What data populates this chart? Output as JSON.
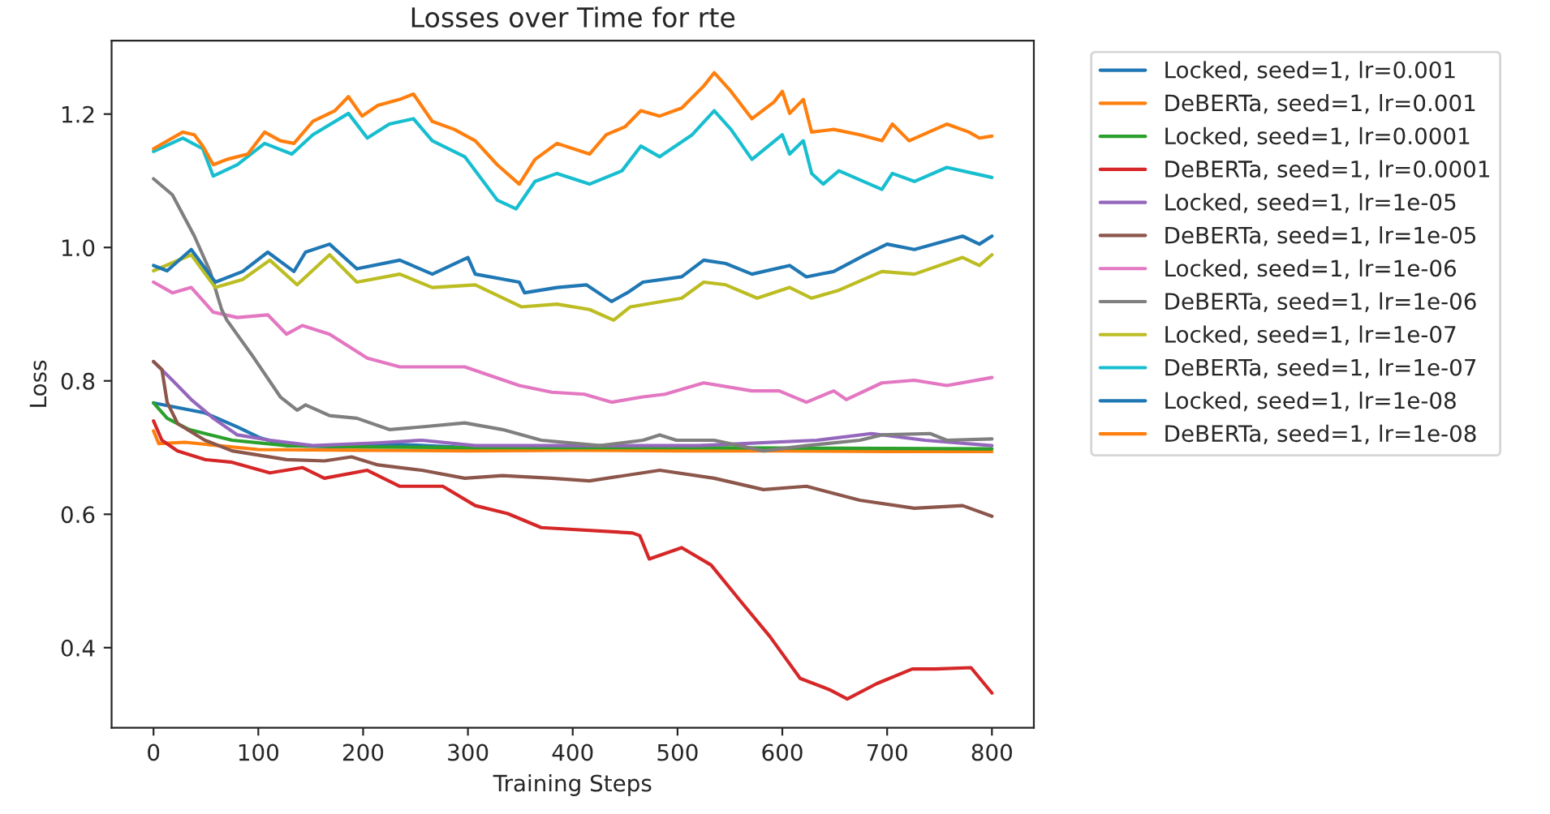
{
  "chart_data": {
    "type": "line",
    "title": "Losses over Time for rte",
    "xlabel": "Training Steps",
    "ylabel": "Loss",
    "xlim": [
      -40,
      840
    ],
    "ylim": [
      0.28,
      1.31
    ],
    "xticks": [
      0,
      100,
      200,
      300,
      400,
      500,
      600,
      700,
      800
    ],
    "yticks": [
      0.4,
      0.6,
      0.8,
      {
        "value": 1.0,
        "label": "1.0"
      },
      1.2
    ],
    "grid": false,
    "legend": "right",
    "line_style": "solid",
    "series": [
      {
        "name": "Locked, seed=1, lr=0.001",
        "color": "#1f77b4",
        "x": [
          0,
          23,
          49,
          80,
          101,
          127,
          180,
          230,
          300,
          400
        ],
        "values": [
          0.767,
          0.76,
          0.752,
          0.731,
          0.715,
          0.703,
          0.701,
          0.705,
          0.7,
          0.699
        ]
      },
      {
        "name": "DeBERTa, seed=1, lr=0.001",
        "color": "#ff7f0e",
        "x": [
          0,
          5,
          30,
          100,
          200,
          300,
          400,
          500,
          600,
          700,
          800
        ],
        "values": [
          0.725,
          0.706,
          0.708,
          0.697,
          0.696,
          0.695,
          0.696,
          0.695,
          0.695,
          0.694,
          0.694
        ]
      },
      {
        "name": "Locked, seed=1, lr=0.0001",
        "color": "#2ca02c",
        "x": [
          0,
          13,
          34,
          75,
          127,
          204,
          300,
          500,
          650,
          800
        ],
        "values": [
          0.767,
          0.744,
          0.727,
          0.711,
          0.703,
          0.701,
          0.7,
          0.7,
          0.699,
          0.698
        ]
      },
      {
        "name": "DeBERTa, seed=1, lr=0.0001",
        "color": "#d62728",
        "x": [
          0,
          8,
          23,
          49,
          75,
          111,
          142,
          163,
          204,
          235,
          276,
          307,
          338,
          370,
          457,
          464,
          473,
          504,
          532,
          560,
          588,
          617,
          645,
          662,
          690,
          724,
          746,
          780,
          800
        ],
        "values": [
          0.74,
          0.711,
          0.695,
          0.682,
          0.678,
          0.662,
          0.67,
          0.654,
          0.666,
          0.642,
          0.642,
          0.613,
          0.601,
          0.58,
          0.572,
          0.568,
          0.533,
          0.55,
          0.524,
          0.47,
          0.417,
          0.354,
          0.337,
          0.323,
          0.346,
          0.368,
          0.368,
          0.37,
          0.332
        ]
      },
      {
        "name": "Locked, seed=1, lr=1e-05",
        "color": "#9467bd",
        "x": [
          0,
          18,
          36,
          57,
          80,
          111,
          152,
          214,
          256,
          307,
          416,
          520,
          633,
          685,
          736,
          800
        ],
        "values": [
          0.829,
          0.801,
          0.772,
          0.744,
          0.719,
          0.711,
          0.703,
          0.707,
          0.711,
          0.703,
          0.703,
          0.703,
          0.711,
          0.721,
          0.711,
          0.703
        ]
      },
      {
        "name": "DeBERTa, seed=1, lr=1e-05",
        "color": "#8c564b",
        "x": [
          0,
          8,
          13,
          23,
          49,
          75,
          127,
          163,
          189,
          214,
          256,
          297,
          333,
          380,
          416,
          483,
          535,
          582,
          623,
          674,
          726,
          772,
          800
        ],
        "values": [
          0.829,
          0.817,
          0.768,
          0.736,
          0.711,
          0.695,
          0.682,
          0.68,
          0.686,
          0.674,
          0.666,
          0.654,
          0.658,
          0.654,
          0.65,
          0.666,
          0.654,
          0.637,
          0.642,
          0.621,
          0.609,
          0.613,
          0.597
        ]
      },
      {
        "name": "Locked, seed=1, lr=1e-06",
        "color": "#e377c2",
        "x": [
          0,
          18,
          36,
          57,
          80,
          109,
          127,
          142,
          168,
          204,
          235,
          297,
          349,
          380,
          411,
          437,
          467,
          488,
          525,
          571,
          597,
          623,
          649,
          661,
          695,
          726,
          757,
          800
        ],
        "values": [
          0.948,
          0.932,
          0.94,
          0.903,
          0.895,
          0.899,
          0.87,
          0.883,
          0.87,
          0.834,
          0.821,
          0.821,
          0.793,
          0.783,
          0.78,
          0.768,
          0.776,
          0.78,
          0.797,
          0.785,
          0.785,
          0.768,
          0.785,
          0.772,
          0.797,
          0.801,
          0.793,
          0.805
        ]
      },
      {
        "name": "DeBERTa, seed=1, lr=1e-06",
        "color": "#7f7f7f",
        "x": [
          0,
          18,
          39,
          54,
          65,
          70,
          96,
          121,
          137,
          145,
          168,
          194,
          225,
          256,
          297,
          333,
          370,
          426,
          467,
          483,
          499,
          535,
          582,
          623,
          674,
          695,
          741,
          757,
          800
        ],
        "values": [
          1.103,
          1.079,
          1.017,
          0.964,
          0.907,
          0.891,
          0.834,
          0.776,
          0.756,
          0.764,
          0.748,
          0.744,
          0.727,
          0.731,
          0.737,
          0.727,
          0.711,
          0.703,
          0.711,
          0.719,
          0.711,
          0.711,
          0.695,
          0.703,
          0.711,
          0.719,
          0.721,
          0.711,
          0.713
        ]
      },
      {
        "name": "Locked, seed=1, lr=1e-07",
        "color": "#bcbd22",
        "x": [
          0,
          36,
          59,
          85,
          111,
          137,
          168,
          194,
          235,
          266,
          307,
          351,
          385,
          416,
          439,
          455,
          504,
          525,
          546,
          576,
          607,
          628,
          654,
          695,
          726,
          772,
          788,
          800
        ],
        "values": [
          0.965,
          0.989,
          0.94,
          0.952,
          0.981,
          0.944,
          0.989,
          0.948,
          0.96,
          0.94,
          0.944,
          0.911,
          0.915,
          0.907,
          0.891,
          0.911,
          0.924,
          0.948,
          0.944,
          0.924,
          0.94,
          0.924,
          0.936,
          0.964,
          0.96,
          0.985,
          0.973,
          0.989
        ]
      },
      {
        "name": "DeBERTa, seed=1, lr=1e-07",
        "color": "#17becf",
        "x": [
          0,
          28,
          47,
          57,
          80,
          106,
          132,
          152,
          186,
          204,
          225,
          248,
          266,
          297,
          328,
          346,
          364,
          385,
          416,
          447,
          465,
          483,
          514,
          535,
          551,
          571,
          600,
          607,
          620,
          628,
          639,
          654,
          695,
          705,
          726,
          757,
          800
        ],
        "values": [
          1.144,
          1.164,
          1.148,
          1.107,
          1.124,
          1.156,
          1.14,
          1.169,
          1.201,
          1.164,
          1.185,
          1.193,
          1.16,
          1.136,
          1.071,
          1.058,
          1.099,
          1.111,
          1.095,
          1.115,
          1.152,
          1.136,
          1.169,
          1.205,
          1.177,
          1.132,
          1.169,
          1.14,
          1.16,
          1.111,
          1.095,
          1.115,
          1.087,
          1.111,
          1.099,
          1.12,
          1.105
        ]
      },
      {
        "name": "Locked, seed=1, lr=1e-08",
        "color": "#1f77b4",
        "x": [
          0,
          13,
          36,
          59,
          85,
          109,
          134,
          145,
          168,
          194,
          235,
          266,
          300,
          307,
          349,
          354,
          385,
          413,
          437,
          452,
          467,
          504,
          525,
          546,
          571,
          607,
          623,
          649,
          679,
          700,
          726,
          772,
          788,
          800
        ],
        "values": [
          0.973,
          0.965,
          0.997,
          0.948,
          0.964,
          0.993,
          0.964,
          0.993,
          1.005,
          0.968,
          0.981,
          0.96,
          0.985,
          0.96,
          0.948,
          0.932,
          0.94,
          0.944,
          0.919,
          0.932,
          0.948,
          0.956,
          0.981,
          0.976,
          0.96,
          0.973,
          0.956,
          0.964,
          0.989,
          1.005,
          0.997,
          1.017,
          1.005,
          1.017
        ]
      },
      {
        "name": "DeBERTa, seed=1, lr=1e-08",
        "color": "#ff7f0e",
        "x": [
          0,
          28,
          39,
          47,
          57,
          70,
          90,
          106,
          121,
          134,
          152,
          173,
          186,
          199,
          214,
          235,
          248,
          266,
          287,
          307,
          328,
          349,
          364,
          385,
          416,
          432,
          450,
          465,
          483,
          504,
          525,
          535,
          551,
          571,
          592,
          600,
          607,
          620,
          628,
          649,
          674,
          695,
          705,
          721,
          757,
          778,
          788,
          800
        ],
        "values": [
          1.148,
          1.173,
          1.169,
          1.152,
          1.124,
          1.132,
          1.14,
          1.173,
          1.16,
          1.156,
          1.189,
          1.205,
          1.226,
          1.197,
          1.213,
          1.222,
          1.23,
          1.189,
          1.177,
          1.16,
          1.124,
          1.095,
          1.132,
          1.156,
          1.14,
          1.169,
          1.181,
          1.205,
          1.197,
          1.209,
          1.242,
          1.262,
          1.234,
          1.193,
          1.218,
          1.234,
          1.201,
          1.222,
          1.173,
          1.177,
          1.169,
          1.16,
          1.185,
          1.16,
          1.185,
          1.173,
          1.164,
          1.167
        ]
      }
    ]
  }
}
